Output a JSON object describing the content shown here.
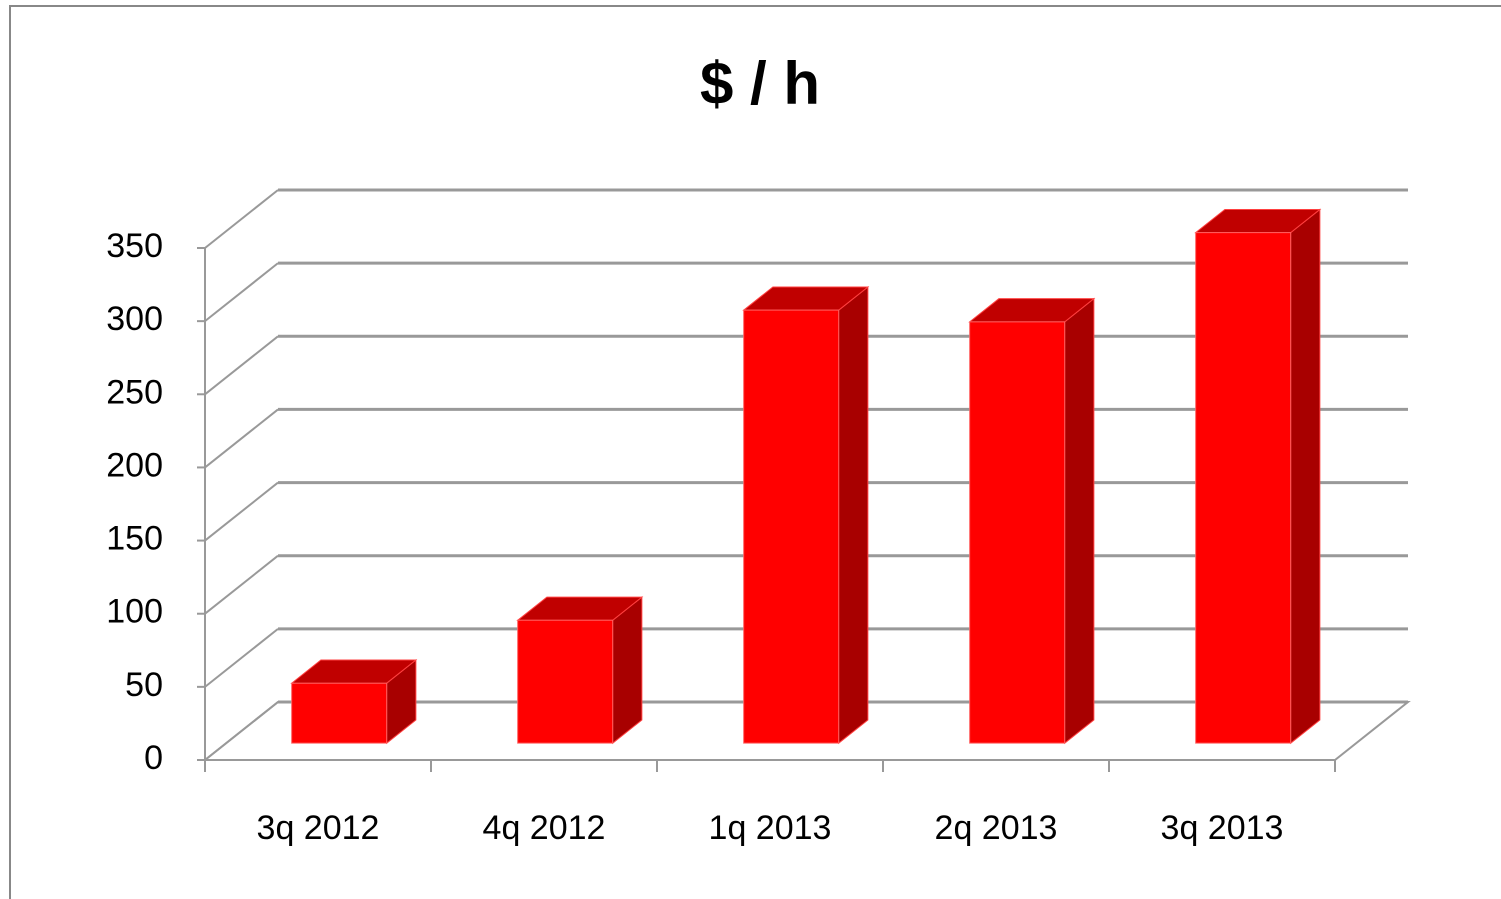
{
  "chart_data": {
    "type": "bar3d",
    "title": "$ / h",
    "categories": [
      "3q 2012",
      "4q 2012",
      "1q 2013",
      "2q 2013",
      "3q 2013"
    ],
    "values": [
      41,
      84,
      296,
      288,
      349
    ],
    "color": "#ff0000",
    "ylim": [
      0,
      350
    ],
    "yticks": [
      0,
      50,
      100,
      150,
      200,
      250,
      300,
      350
    ],
    "grid": true
  }
}
